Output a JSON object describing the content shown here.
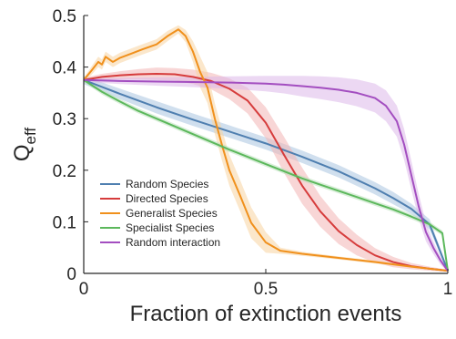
{
  "chart_data": {
    "type": "line",
    "title": "",
    "xlabel": "Fraction of extinction events",
    "ylabel_main": "Q",
    "ylabel_sub": "eff",
    "xlim": [
      0,
      1
    ],
    "ylim": [
      0,
      0.5
    ],
    "xticks": [
      0,
      0.5,
      1
    ],
    "xtick_labels": [
      "0",
      "0.5",
      "1"
    ],
    "yticks": [
      0,
      0.1,
      0.2,
      0.3,
      0.4,
      0.5
    ],
    "ytick_labels": [
      "0",
      "0.1",
      "0.2",
      "0.3",
      "0.4",
      "0.5"
    ],
    "grid": false,
    "legend_position": "bottom-left",
    "series": [
      {
        "name": "Random Species",
        "color": "#4f7fb0",
        "band_color": "#a9c4e0",
        "x": [
          0,
          0.1,
          0.2,
          0.3,
          0.4,
          0.5,
          0.6,
          0.7,
          0.8,
          0.85,
          0.9,
          0.95,
          1.0
        ],
        "y": [
          0.375,
          0.348,
          0.322,
          0.298,
          0.275,
          0.252,
          0.226,
          0.198,
          0.165,
          0.146,
          0.125,
          0.095,
          0.005
        ],
        "band": [
          0.008,
          0.01,
          0.012,
          0.012,
          0.012,
          0.012,
          0.012,
          0.012,
          0.012,
          0.012,
          0.01,
          0.01,
          0.004
        ]
      },
      {
        "name": "Directed Species",
        "color": "#d63c3c",
        "band_color": "#f2b4b4",
        "x": [
          0,
          0.05,
          0.1,
          0.15,
          0.2,
          0.25,
          0.3,
          0.35,
          0.4,
          0.45,
          0.5,
          0.55,
          0.6,
          0.65,
          0.7,
          0.75,
          0.8,
          0.85,
          0.9,
          0.95,
          1.0
        ],
        "y": [
          0.375,
          0.381,
          0.384,
          0.386,
          0.387,
          0.386,
          0.381,
          0.373,
          0.358,
          0.335,
          0.292,
          0.23,
          0.17,
          0.12,
          0.082,
          0.055,
          0.035,
          0.022,
          0.014,
          0.009,
          0.005
        ],
        "band": [
          0.004,
          0.006,
          0.008,
          0.01,
          0.012,
          0.012,
          0.014,
          0.016,
          0.02,
          0.025,
          0.03,
          0.035,
          0.035,
          0.03,
          0.025,
          0.02,
          0.014,
          0.01,
          0.006,
          0.004,
          0.002
        ]
      },
      {
        "name": "Generalist Species",
        "color": "#f0901c",
        "band_color": "#f8d3a0",
        "x": [
          0,
          0.02,
          0.04,
          0.05,
          0.06,
          0.08,
          0.1,
          0.13,
          0.16,
          0.2,
          0.23,
          0.26,
          0.28,
          0.3,
          0.32,
          0.34,
          0.36,
          0.38,
          0.4,
          0.43,
          0.46,
          0.5,
          0.54,
          0.6,
          0.7,
          0.8,
          0.9,
          1.0
        ],
        "y": [
          0.375,
          0.392,
          0.41,
          0.405,
          0.42,
          0.41,
          0.418,
          0.426,
          0.434,
          0.444,
          0.46,
          0.473,
          0.46,
          0.43,
          0.39,
          0.36,
          0.3,
          0.248,
          0.2,
          0.15,
          0.098,
          0.06,
          0.044,
          0.038,
          0.03,
          0.022,
          0.013,
          0.005
        ],
        "band": [
          0.004,
          0.008,
          0.01,
          0.01,
          0.01,
          0.01,
          0.01,
          0.01,
          0.01,
          0.01,
          0.01,
          0.008,
          0.012,
          0.02,
          0.03,
          0.03,
          0.03,
          0.03,
          0.03,
          0.03,
          0.03,
          0.02,
          0.006,
          0.004,
          0.003,
          0.003,
          0.002,
          0.001
        ]
      },
      {
        "name": "Specialist Species",
        "color": "#5cb85c",
        "band_color": "#b9e0b9",
        "x": [
          0,
          0.05,
          0.1,
          0.15,
          0.2,
          0.25,
          0.3,
          0.35,
          0.4,
          0.45,
          0.5,
          0.55,
          0.6,
          0.65,
          0.7,
          0.75,
          0.8,
          0.85,
          0.9,
          0.95,
          0.985,
          1.0
        ],
        "y": [
          0.375,
          0.352,
          0.333,
          0.315,
          0.3,
          0.285,
          0.27,
          0.255,
          0.24,
          0.226,
          0.212,
          0.198,
          0.184,
          0.172,
          0.16,
          0.148,
          0.136,
          0.124,
          0.11,
          0.095,
          0.078,
          0.005
        ],
        "band": [
          0.004,
          0.005,
          0.005,
          0.005,
          0.005,
          0.005,
          0.005,
          0.005,
          0.005,
          0.005,
          0.005,
          0.005,
          0.005,
          0.005,
          0.005,
          0.005,
          0.005,
          0.005,
          0.005,
          0.005,
          0.005,
          0.002
        ]
      },
      {
        "name": "Random interaction",
        "color": "#a34ec0",
        "band_color": "#ddb8ea",
        "x": [
          0,
          0.1,
          0.2,
          0.3,
          0.4,
          0.5,
          0.55,
          0.6,
          0.65,
          0.7,
          0.75,
          0.8,
          0.83,
          0.86,
          0.88,
          0.9,
          0.92,
          0.94,
          0.96,
          0.98,
          1.0
        ],
        "y": [
          0.375,
          0.373,
          0.372,
          0.371,
          0.37,
          0.368,
          0.366,
          0.363,
          0.36,
          0.356,
          0.35,
          0.34,
          0.325,
          0.295,
          0.25,
          0.19,
          0.13,
          0.08,
          0.05,
          0.025,
          0.005
        ],
        "band": [
          0.004,
          0.006,
          0.008,
          0.01,
          0.012,
          0.015,
          0.017,
          0.02,
          0.022,
          0.024,
          0.026,
          0.028,
          0.03,
          0.03,
          0.03,
          0.028,
          0.024,
          0.018,
          0.012,
          0.008,
          0.002
        ]
      }
    ]
  }
}
